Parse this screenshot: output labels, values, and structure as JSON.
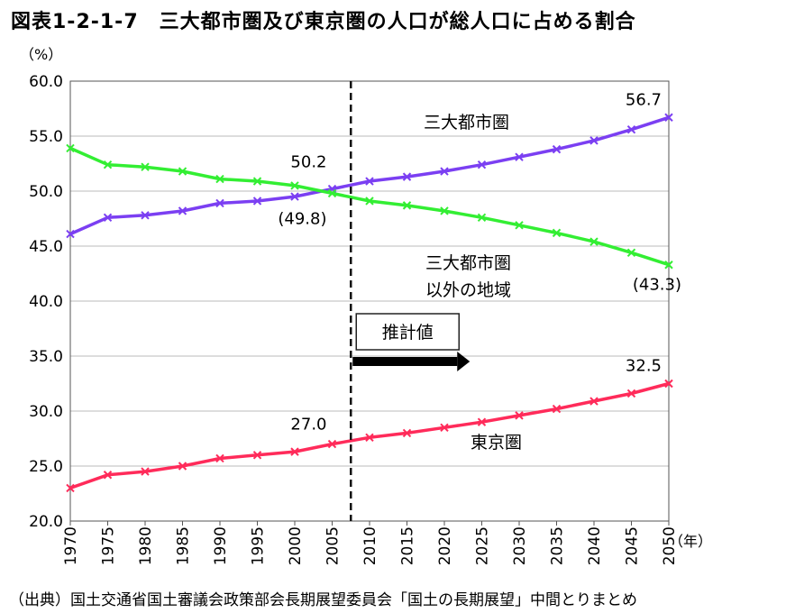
{
  "title": "図表1-2-1-7　三大都市圏及び東京圏の人口が総人口に占める割合",
  "source": "（出典）国土交通省国土審議会政策部会長期展望委員会「国土の長期展望」中間とりまとめ",
  "chart_data": {
    "type": "line",
    "title": "図表1-2-1-7　三大都市圏及び東京圏の人口が総人口に占める割合",
    "ylabel": "（%）",
    "xlabel": "（年）",
    "ylim": [
      20.0,
      60.0
    ],
    "yticks": [
      "20.0",
      "25.0",
      "30.0",
      "35.0",
      "40.0",
      "45.0",
      "50.0",
      "55.0",
      "60.0"
    ],
    "grid": true,
    "x": [
      1970,
      1975,
      1980,
      1985,
      1990,
      1995,
      2000,
      2005,
      2010,
      2015,
      2020,
      2025,
      2030,
      2035,
      2040,
      2045,
      2050
    ],
    "xticks": [
      "1970",
      "1975",
      "1980",
      "1985",
      "1990",
      "1995",
      "2000",
      "2005",
      "2010",
      "2015",
      "2020",
      "2025",
      "2030",
      "2035",
      "2040",
      "2045",
      "2050"
    ],
    "series": [
      {
        "name": "三大都市圏",
        "color": "#7b3ff2",
        "values": [
          46.1,
          47.6,
          47.8,
          48.2,
          48.9,
          49.1,
          49.5,
          50.2,
          50.9,
          51.3,
          51.8,
          52.4,
          53.1,
          53.8,
          54.6,
          55.6,
          56.7
        ]
      },
      {
        "name": "三大都市圏以外の地域",
        "name_lines": [
          "三大都市圏",
          "以外の地域"
        ],
        "color": "#33ee33",
        "values": [
          53.9,
          52.4,
          52.2,
          51.8,
          51.1,
          50.9,
          50.5,
          49.8,
          49.1,
          48.7,
          48.2,
          47.6,
          46.9,
          46.2,
          45.4,
          44.4,
          43.3
        ]
      },
      {
        "name": "東京圏",
        "color": "#ff2b5a",
        "values": [
          23.0,
          24.2,
          24.5,
          25.0,
          25.7,
          26.0,
          26.3,
          27.0,
          27.6,
          28.0,
          28.5,
          29.0,
          29.6,
          30.2,
          30.9,
          31.6,
          32.5
        ]
      }
    ],
    "data_labels": [
      {
        "text": "50.2",
        "series": "三大都市圏",
        "x": 2005
      },
      {
        "text": "(49.8)",
        "series": "三大都市圏以外の地域",
        "x": 2005
      },
      {
        "text": "56.7",
        "series": "三大都市圏",
        "x": 2050
      },
      {
        "text": "(43.3)",
        "series": "三大都市圏以外の地域",
        "x": 2050
      },
      {
        "text": "27.0",
        "series": "東京圏",
        "x": 2005
      },
      {
        "text": "32.5",
        "series": "東京圏",
        "x": 2050
      }
    ],
    "annotations": {
      "forecast_divider_x": 2007.5,
      "forecast_label": "推計値"
    }
  }
}
